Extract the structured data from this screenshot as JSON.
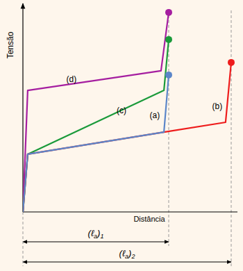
{
  "chart_data": {
    "type": "line",
    "x_label": "Distância",
    "y_label": "Tensão",
    "xlim": [
      0,
      103
    ],
    "ylim": [
      0,
      100
    ],
    "tick_labels": false,
    "grid": false,
    "series": [
      {
        "name": "(a)",
        "color": "#5b86c9",
        "marker": "circle",
        "x": [
          0,
          2.3,
          67.7,
          70
        ],
        "values": [
          0,
          27.7,
          38.3,
          65.7
        ]
      },
      {
        "name": "(b)",
        "color": "#ee1c1c",
        "marker": "circle",
        "x": [
          0,
          2.3,
          67.7,
          97.3,
          100
        ],
        "values": [
          0,
          27.7,
          38.3,
          43,
          71.7
        ]
      },
      {
        "name": "(c)",
        "color": "#1a9a3a",
        "marker": "circle",
        "x": [
          0,
          2.3,
          67.7,
          70
        ],
        "values": [
          0,
          27.7,
          58.3,
          82.7
        ]
      },
      {
        "name": "(d)",
        "color": "#a51ea0",
        "marker": "circle",
        "x": [
          0,
          2.3,
          66.3,
          70
        ],
        "values": [
          0,
          58.3,
          67.7,
          95.7
        ]
      }
    ],
    "annotations": [
      {
        "text": "(a)",
        "x": 63.3,
        "y": 45
      },
      {
        "text": "(b)",
        "x": 93.3,
        "y": 49.3
      },
      {
        "text": "(c)",
        "x": 47.3,
        "y": 47.3
      },
      {
        "text": "(d)",
        "x": 23.3,
        "y": 62.3
      }
    ],
    "dimensions": [
      {
        "label": "(ℓa)1",
        "x": [
          0,
          70
        ]
      },
      {
        "label": "(ℓa)2",
        "x": [
          0,
          100
        ]
      }
    ]
  }
}
